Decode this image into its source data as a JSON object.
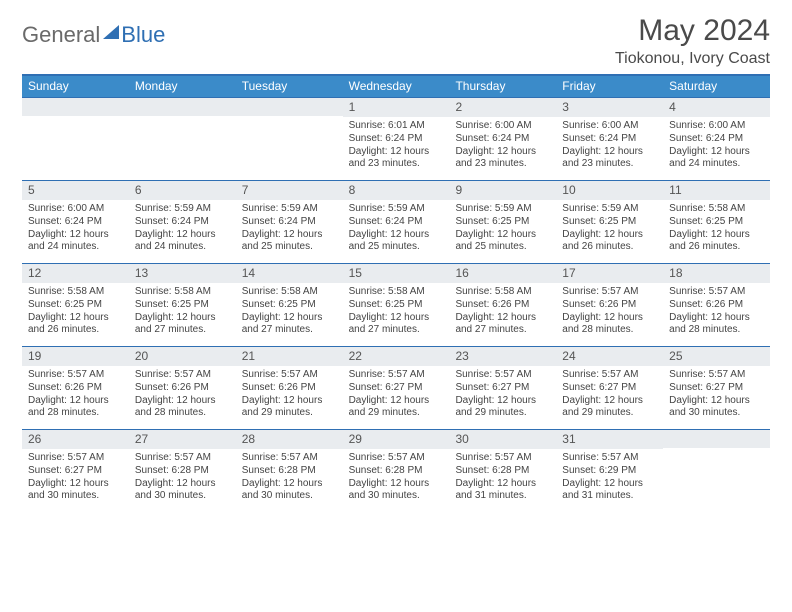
{
  "brand": {
    "general": "General",
    "blue": "Blue"
  },
  "title": "May 2024",
  "location": "Tiokonou, Ivory Coast",
  "colors": {
    "header_bar": "#3b8bc9",
    "rule": "#2f6fb3",
    "daynum_bg": "#e9ecef",
    "text": "#333333",
    "logo_gray": "#6a6a6a",
    "logo_blue": "#2f6fb3"
  },
  "dow": [
    "Sunday",
    "Monday",
    "Tuesday",
    "Wednesday",
    "Thursday",
    "Friday",
    "Saturday"
  ],
  "weeks": [
    [
      {
        "n": "",
        "sr": "",
        "ss": "",
        "dl": ""
      },
      {
        "n": "",
        "sr": "",
        "ss": "",
        "dl": ""
      },
      {
        "n": "",
        "sr": "",
        "ss": "",
        "dl": ""
      },
      {
        "n": "1",
        "sr": "6:01 AM",
        "ss": "6:24 PM",
        "dl": "12 hours and 23 minutes."
      },
      {
        "n": "2",
        "sr": "6:00 AM",
        "ss": "6:24 PM",
        "dl": "12 hours and 23 minutes."
      },
      {
        "n": "3",
        "sr": "6:00 AM",
        "ss": "6:24 PM",
        "dl": "12 hours and 23 minutes."
      },
      {
        "n": "4",
        "sr": "6:00 AM",
        "ss": "6:24 PM",
        "dl": "12 hours and 24 minutes."
      }
    ],
    [
      {
        "n": "5",
        "sr": "6:00 AM",
        "ss": "6:24 PM",
        "dl": "12 hours and 24 minutes."
      },
      {
        "n": "6",
        "sr": "5:59 AM",
        "ss": "6:24 PM",
        "dl": "12 hours and 24 minutes."
      },
      {
        "n": "7",
        "sr": "5:59 AM",
        "ss": "6:24 PM",
        "dl": "12 hours and 25 minutes."
      },
      {
        "n": "8",
        "sr": "5:59 AM",
        "ss": "6:24 PM",
        "dl": "12 hours and 25 minutes."
      },
      {
        "n": "9",
        "sr": "5:59 AM",
        "ss": "6:25 PM",
        "dl": "12 hours and 25 minutes."
      },
      {
        "n": "10",
        "sr": "5:59 AM",
        "ss": "6:25 PM",
        "dl": "12 hours and 26 minutes."
      },
      {
        "n": "11",
        "sr": "5:58 AM",
        "ss": "6:25 PM",
        "dl": "12 hours and 26 minutes."
      }
    ],
    [
      {
        "n": "12",
        "sr": "5:58 AM",
        "ss": "6:25 PM",
        "dl": "12 hours and 26 minutes."
      },
      {
        "n": "13",
        "sr": "5:58 AM",
        "ss": "6:25 PM",
        "dl": "12 hours and 27 minutes."
      },
      {
        "n": "14",
        "sr": "5:58 AM",
        "ss": "6:25 PM",
        "dl": "12 hours and 27 minutes."
      },
      {
        "n": "15",
        "sr": "5:58 AM",
        "ss": "6:25 PM",
        "dl": "12 hours and 27 minutes."
      },
      {
        "n": "16",
        "sr": "5:58 AM",
        "ss": "6:26 PM",
        "dl": "12 hours and 27 minutes."
      },
      {
        "n": "17",
        "sr": "5:57 AM",
        "ss": "6:26 PM",
        "dl": "12 hours and 28 minutes."
      },
      {
        "n": "18",
        "sr": "5:57 AM",
        "ss": "6:26 PM",
        "dl": "12 hours and 28 minutes."
      }
    ],
    [
      {
        "n": "19",
        "sr": "5:57 AM",
        "ss": "6:26 PM",
        "dl": "12 hours and 28 minutes."
      },
      {
        "n": "20",
        "sr": "5:57 AM",
        "ss": "6:26 PM",
        "dl": "12 hours and 28 minutes."
      },
      {
        "n": "21",
        "sr": "5:57 AM",
        "ss": "6:26 PM",
        "dl": "12 hours and 29 minutes."
      },
      {
        "n": "22",
        "sr": "5:57 AM",
        "ss": "6:27 PM",
        "dl": "12 hours and 29 minutes."
      },
      {
        "n": "23",
        "sr": "5:57 AM",
        "ss": "6:27 PM",
        "dl": "12 hours and 29 minutes."
      },
      {
        "n": "24",
        "sr": "5:57 AM",
        "ss": "6:27 PM",
        "dl": "12 hours and 29 minutes."
      },
      {
        "n": "25",
        "sr": "5:57 AM",
        "ss": "6:27 PM",
        "dl": "12 hours and 30 minutes."
      }
    ],
    [
      {
        "n": "26",
        "sr": "5:57 AM",
        "ss": "6:27 PM",
        "dl": "12 hours and 30 minutes."
      },
      {
        "n": "27",
        "sr": "5:57 AM",
        "ss": "6:28 PM",
        "dl": "12 hours and 30 minutes."
      },
      {
        "n": "28",
        "sr": "5:57 AM",
        "ss": "6:28 PM",
        "dl": "12 hours and 30 minutes."
      },
      {
        "n": "29",
        "sr": "5:57 AM",
        "ss": "6:28 PM",
        "dl": "12 hours and 30 minutes."
      },
      {
        "n": "30",
        "sr": "5:57 AM",
        "ss": "6:28 PM",
        "dl": "12 hours and 31 minutes."
      },
      {
        "n": "31",
        "sr": "5:57 AM",
        "ss": "6:29 PM",
        "dl": "12 hours and 31 minutes."
      },
      {
        "n": "",
        "sr": "",
        "ss": "",
        "dl": ""
      }
    ]
  ],
  "labels": {
    "sunrise": "Sunrise: ",
    "sunset": "Sunset: ",
    "daylight": "Daylight: "
  }
}
